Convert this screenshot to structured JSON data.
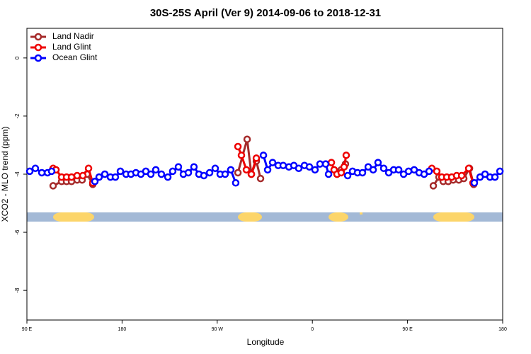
{
  "chart_data": {
    "type": "line",
    "title": "30S-25S April (Ver 9)   2014-09-06 to 2018-12-31",
    "x_label": "Longitude",
    "y_label": "XCO2 - MLO trend (ppm)",
    "xlim": [
      90,
      540
    ],
    "ylim": [
      -9.02,
      1.02
    ],
    "xticks": [
      {
        "value": 90,
        "label": "90 E"
      },
      180,
      {
        "value": 270,
        "label": "90 W"
      },
      {
        "value": 360,
        "label": "0"
      },
      {
        "value": 450,
        "label": "90 E"
      },
      {
        "value": 540,
        "label": "180"
      }
    ],
    "yticks": [
      0,
      -2,
      -4,
      -6,
      -8
    ],
    "legend": "top-left",
    "series": [
      {
        "name": "Land Nadir",
        "color": "#a52a2a",
        "x": [
          114.8,
          122.8,
          127.5,
          132.2,
          137.5,
          142.2,
          146.9,
          152.3,
          null,
          289.6,
          298.3,
          302.3,
          307,
          311,
          null,
          383.3,
          387.3,
          391.3,
          null,
          474.4,
          479.7,
          483.8,
          488.5,
          493.2,
          498.5,
          503.2,
          508.6,
          512.6
        ],
        "values": [
          -4.4,
          -4.25,
          -4.25,
          -4.25,
          -4.2,
          -4.2,
          -4.0,
          -4.35,
          null,
          -3.95,
          -2.8,
          -4.0,
          -3.55,
          -4.15,
          null,
          -4.0,
          -3.85,
          -3.65,
          null,
          -4.4,
          -4.1,
          -4.25,
          -4.25,
          -4.2,
          -4.2,
          -4.15,
          -3.8,
          -4.35
        ]
      },
      {
        "name": "Land Glint",
        "color": "#ee0000",
        "x": [
          114.8,
          117.5,
          122.8,
          127.5,
          132.2,
          137.5,
          142.9,
          148.3,
          152.3,
          null,
          289.6,
          292.9,
          297.6,
          302.3,
          307,
          null,
          378,
          380.6,
          383.3,
          387.3,
          390,
          392,
          null,
          473,
          477.7,
          482.4,
          487.1,
          491.8,
          496.5,
          501.2,
          507.9,
          511.9
        ],
        "values": [
          -3.8,
          -3.85,
          -4.1,
          -4.1,
          -4.1,
          -4.05,
          -4.05,
          -3.8,
          -4.3,
          null,
          -3.05,
          -3.35,
          -3.85,
          -4.0,
          -3.45,
          null,
          -3.6,
          -3.85,
          -4.0,
          -3.95,
          -3.75,
          -3.35,
          null,
          -3.8,
          -3.9,
          -4.1,
          -4.1,
          -4.1,
          -4.05,
          -4.05,
          -3.8,
          -4.3
        ]
      },
      {
        "name": "Ocean Glint",
        "color": "#0000ff",
        "x": [
          92.7,
          98,
          104.1,
          109.5,
          113.4,
          null,
          154.3,
          158.3,
          163.7,
          169,
          173.7,
          178.4,
          183.8,
          188.4,
          193.1,
          197.8,
          202.5,
          207.2,
          211.9,
          217.2,
          223.3,
          227.9,
          233.3,
          238,
          242.7,
          248,
          252.7,
          257.4,
          262.8,
          268.1,
          272.8,
          277.5,
          282.8,
          287.5,
          null,
          313.7,
          317.7,
          322.4,
          327.7,
          332.4,
          337.8,
          342.5,
          347.1,
          352.5,
          357.2,
          362.5,
          367.2,
          372.6,
          375.3,
          null,
          393.4,
          398,
          402.7,
          407.4,
          412.8,
          417.5,
          422.1,
          427.5,
          432.2,
          436.9,
          441.6,
          446.3,
          451,
          456.3,
          461,
          465.7,
          470.4,
          null,
          513.2,
          518.6,
          523.3,
          528,
          532.7,
          537.4
        ],
        "values": [
          -3.9,
          -3.8,
          -3.95,
          -3.95,
          -3.9,
          null,
          -4.25,
          -4.1,
          -4.0,
          -4.1,
          -4.1,
          -3.9,
          -4.0,
          -4.0,
          -3.95,
          -4.0,
          -3.9,
          -4.0,
          -3.85,
          -4.0,
          -4.1,
          -3.9,
          -3.75,
          -4.0,
          -3.95,
          -3.75,
          -4.0,
          -4.05,
          -3.95,
          -3.8,
          -4.0,
          -4.0,
          -3.85,
          -4.3,
          null,
          -3.35,
          -3.85,
          -3.6,
          -3.7,
          -3.7,
          -3.75,
          -3.7,
          -3.8,
          -3.7,
          -3.75,
          -3.85,
          -3.65,
          -3.65,
          -4.0,
          null,
          -4.05,
          -3.9,
          -3.95,
          -3.95,
          -3.75,
          -3.85,
          -3.6,
          -3.8,
          -3.95,
          -3.85,
          -3.85,
          -4.0,
          -3.9,
          -3.85,
          -3.95,
          -4.0,
          -3.9,
          null,
          -4.3,
          -4.1,
          -4.0,
          -4.1,
          -4.1,
          -3.9
        ]
      }
    ]
  }
}
